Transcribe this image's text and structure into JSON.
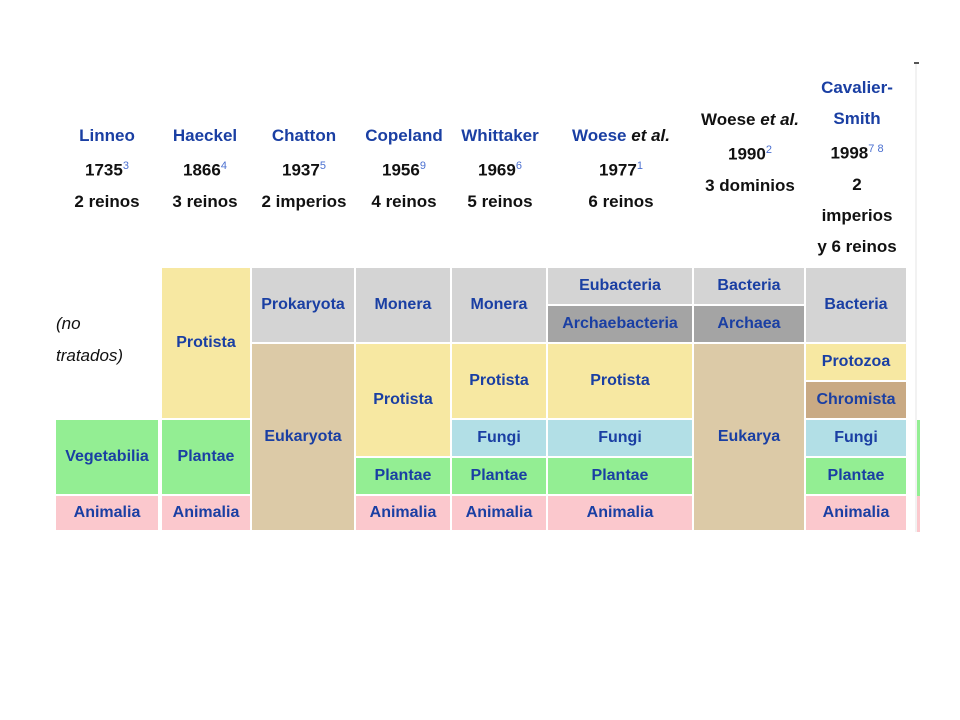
{
  "headers": [
    {
      "name": "Linneo",
      "year": "1735",
      "ref": "3",
      "count": "2 reinos"
    },
    {
      "name": "Haeckel",
      "year": "1866",
      "ref": "4",
      "count": "3 reinos"
    },
    {
      "name": "Chatton",
      "year": "1937",
      "ref": "5",
      "count": "2 imperios"
    },
    {
      "name": "Copeland",
      "year": "1956",
      "ref": "9",
      "count": "4 reinos"
    },
    {
      "name": "Whittaker",
      "year": "1969",
      "ref": "6",
      "count": "5 reinos"
    },
    {
      "name": "Woese",
      "name_suffix": "et al.",
      "year": "1977",
      "ref": "1",
      "count": "6 reinos"
    },
    {
      "name_prefix": "Woese",
      "name_italic": "et al.",
      "year": "1990",
      "ref": "2",
      "count": "3 dominios"
    },
    {
      "name": "Cavalier-Smith",
      "year": "1998",
      "ref": "7 8",
      "count_line1": "2",
      "count_line2": "imperios",
      "count_line3": "y 6 reinos"
    }
  ],
  "note_line1": "(no",
  "note_line2": "tratados)",
  "cells": {
    "linneo_vegetabilia": "Vegetabilia",
    "linneo_animalia": "Animalia",
    "haeckel_protista": "Protista",
    "haeckel_plantae": "Plantae",
    "haeckel_animalia": "Animalia",
    "chatton_prokaryota": "Prokaryota",
    "chatton_eukaryota": "Eukaryota",
    "copeland_monera": "Monera",
    "copeland_protista": "Protista",
    "copeland_plantae": "Plantae",
    "copeland_animalia": "Animalia",
    "whittaker_monera": "Monera",
    "whittaker_protista": "Protista",
    "whittaker_fungi": "Fungi",
    "whittaker_plantae": "Plantae",
    "whittaker_animalia": "Animalia",
    "woese77_eubacteria": "Eubacteria",
    "woese77_archaebacteria": "Archaebacteria",
    "woese77_protista": "Protista",
    "woese77_fungi": "Fungi",
    "woese77_plantae": "Plantae",
    "woese77_animalia": "Animalia",
    "woese90_bacteria": "Bacteria",
    "woese90_archaea": "Archaea",
    "woese90_eukarya": "Eukarya",
    "cs_bacteria": "Bacteria",
    "cs_protozoa": "Protozoa",
    "cs_chromista": "Chromista",
    "cs_fungi": "Fungi",
    "cs_plantae": "Plantae",
    "cs_animalia": "Animalia"
  }
}
